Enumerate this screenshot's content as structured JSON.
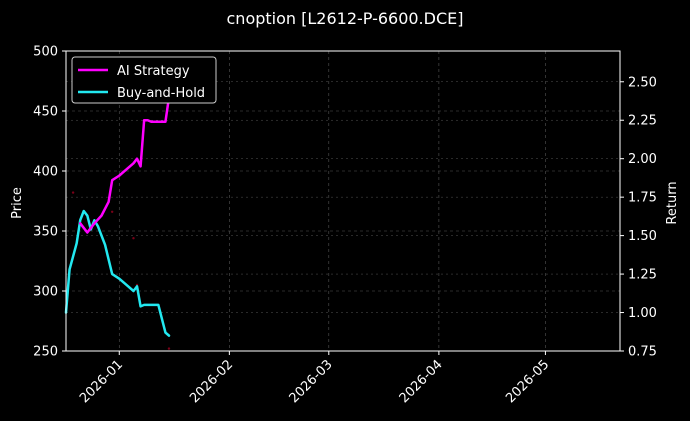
{
  "chart_data": {
    "type": "line",
    "title": "cnoption [L2612-P-6600.DCE]",
    "xlabel": "",
    "ylabel_left": "Price",
    "ylabel_right": "Return",
    "x_range": [
      "2025-12-17",
      "2026-05-22"
    ],
    "x_ticks": [
      "2026-01",
      "2026-02",
      "2026-03",
      "2026-04",
      "2026-05"
    ],
    "x_tick_dates": [
      "2026-01-01",
      "2026-02-01",
      "2026-03-01",
      "2026-04-01",
      "2026-05-01"
    ],
    "ylim_left": [
      250,
      500
    ],
    "yticks_left": [
      250,
      300,
      350,
      400,
      450,
      500
    ],
    "ylim_right": [
      0.75,
      2.7
    ],
    "yticks_right": [
      0.75,
      1.0,
      1.25,
      1.5,
      1.75,
      2.0,
      2.25,
      2.5
    ],
    "ytick_labels_right": [
      "0.75",
      "1.00",
      "1.25",
      "1.50",
      "1.75",
      "2.00",
      "2.25",
      "2.50"
    ],
    "grid": true,
    "legend_position": "top-left",
    "colors": {
      "background": "#000000",
      "ai_strategy": "#ff00ff",
      "buy_and_hold": "#22e8f0",
      "price_markers": "#7a0018",
      "grid": "#555555",
      "axes": "#ffffff"
    },
    "series": [
      {
        "name": "AI Strategy",
        "axis": "right",
        "points": [
          [
            "2025-12-21",
            1.58
          ],
          [
            "2025-12-23",
            1.52
          ],
          [
            "2025-12-25",
            1.58
          ],
          [
            "2025-12-27",
            1.63
          ],
          [
            "2025-12-29",
            1.72
          ],
          [
            "2025-12-30",
            1.86
          ],
          [
            "2026-01-01",
            1.89
          ],
          [
            "2026-01-03",
            1.93
          ],
          [
            "2026-01-05",
            1.97
          ],
          [
            "2026-01-06",
            2.0
          ],
          [
            "2026-01-07",
            1.95
          ],
          [
            "2026-01-08",
            2.25
          ],
          [
            "2026-01-09",
            2.25
          ],
          [
            "2026-01-10",
            2.24
          ],
          [
            "2026-01-14",
            2.24
          ],
          [
            "2026-01-15",
            2.4
          ],
          [
            "2026-01-16",
            2.59
          ]
        ]
      },
      {
        "name": "Buy-and-Hold",
        "axis": "right",
        "points": [
          [
            "2025-12-17",
            1.0
          ],
          [
            "2025-12-18",
            1.28
          ],
          [
            "2025-12-20",
            1.45
          ],
          [
            "2025-12-21",
            1.6
          ],
          [
            "2025-12-22",
            1.66
          ],
          [
            "2025-12-23",
            1.63
          ],
          [
            "2025-12-24",
            1.54
          ],
          [
            "2025-12-25",
            1.6
          ],
          [
            "2025-12-26",
            1.56
          ],
          [
            "2025-12-28",
            1.44
          ],
          [
            "2025-12-30",
            1.25
          ],
          [
            "2026-01-01",
            1.22
          ],
          [
            "2026-01-03",
            1.18
          ],
          [
            "2026-01-05",
            1.14
          ],
          [
            "2026-01-06",
            1.17
          ],
          [
            "2026-01-07",
            1.04
          ],
          [
            "2026-01-08",
            1.05
          ],
          [
            "2026-01-12",
            1.05
          ],
          [
            "2026-01-14",
            0.87
          ],
          [
            "2026-01-15",
            0.85
          ]
        ]
      }
    ],
    "price_markers": {
      "axis": "left",
      "points": [
        [
          "2025-12-19",
          382
        ],
        [
          "2025-12-30",
          366
        ],
        [
          "2026-01-05",
          344
        ],
        [
          "2026-01-06",
          305
        ],
        [
          "2026-01-14",
          485
        ],
        [
          "2026-01-15",
          252
        ]
      ]
    }
  }
}
